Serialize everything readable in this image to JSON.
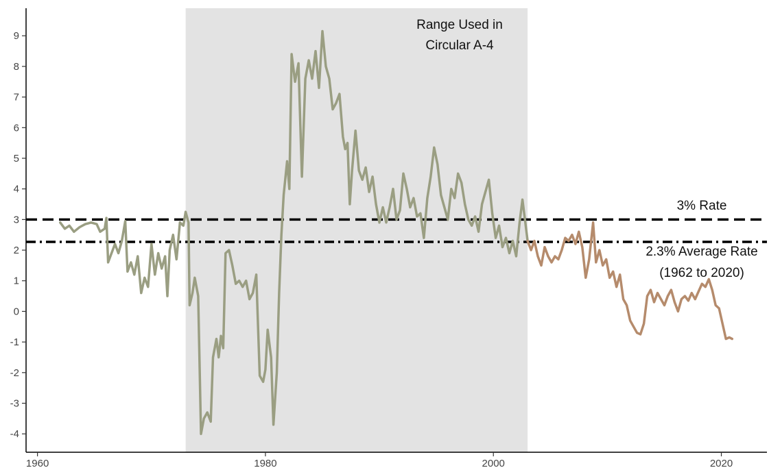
{
  "chart_data": {
    "type": "line",
    "title": "",
    "xlabel": "",
    "ylabel": "",
    "xlim": [
      1959,
      2024
    ],
    "ylim": [
      -4.6,
      9.9
    ],
    "x_ticks": [
      1960,
      1980,
      2000,
      2020
    ],
    "y_ticks": [
      -4,
      -3,
      -2,
      -1,
      0,
      1,
      2,
      3,
      4,
      5,
      6,
      7,
      8,
      9
    ],
    "shaded_region": {
      "x_start": 1973.0,
      "x_end": 2003.0,
      "color": "#e3e3e3",
      "label_lines": [
        "Range Used in",
        "Circular A-4"
      ]
    },
    "reference_lines": [
      {
        "name": "3% Rate",
        "label_lines": [
          "3% Rate"
        ],
        "y": 3.0,
        "style": "dashed",
        "color": "#000000"
      },
      {
        "name": "2.3% Average Rate",
        "label_lines": [
          "2.3% Average Rate",
          "(1962 to 2020)"
        ],
        "y": 2.27,
        "style": "dashdot",
        "color": "#000000"
      }
    ],
    "series": [
      {
        "color": "#9a9e82",
        "points": [
          [
            1962.0,
            2.9
          ],
          [
            1962.4,
            2.7
          ],
          [
            1962.8,
            2.8
          ],
          [
            1963.2,
            2.6
          ],
          [
            1963.7,
            2.75
          ],
          [
            1964.2,
            2.85
          ],
          [
            1964.7,
            2.9
          ],
          [
            1965.2,
            2.85
          ],
          [
            1965.5,
            2.6
          ],
          [
            1965.9,
            2.7
          ],
          [
            1966.05,
            3.05
          ],
          [
            1966.2,
            1.6
          ],
          [
            1966.5,
            1.9
          ],
          [
            1966.8,
            2.2
          ],
          [
            1967.1,
            1.9
          ],
          [
            1967.4,
            2.3
          ],
          [
            1967.7,
            2.95
          ],
          [
            1967.9,
            1.3
          ],
          [
            1968.2,
            1.6
          ],
          [
            1968.5,
            1.2
          ],
          [
            1968.8,
            1.8
          ],
          [
            1969.1,
            0.6
          ],
          [
            1969.4,
            1.1
          ],
          [
            1969.7,
            0.8
          ],
          [
            1970.0,
            2.2
          ],
          [
            1970.3,
            1.2
          ],
          [
            1970.6,
            1.9
          ],
          [
            1970.9,
            1.4
          ],
          [
            1971.2,
            1.8
          ],
          [
            1971.4,
            0.5
          ],
          [
            1971.6,
            2.0
          ],
          [
            1971.9,
            2.5
          ],
          [
            1972.2,
            1.7
          ],
          [
            1972.5,
            2.9
          ],
          [
            1972.8,
            2.8
          ],
          [
            1973.0,
            3.25
          ],
          [
            1973.25,
            2.9
          ],
          [
            1973.35,
            0.2
          ],
          [
            1973.6,
            0.6
          ],
          [
            1973.8,
            1.1
          ],
          [
            1974.1,
            0.5
          ],
          [
            1974.35,
            -4.0
          ],
          [
            1974.6,
            -3.5
          ],
          [
            1974.9,
            -3.3
          ],
          [
            1975.2,
            -3.6
          ],
          [
            1975.4,
            -1.5
          ],
          [
            1975.7,
            -0.9
          ],
          [
            1975.9,
            -1.5
          ],
          [
            1976.1,
            -0.8
          ],
          [
            1976.3,
            -1.2
          ],
          [
            1976.5,
            1.9
          ],
          [
            1976.8,
            2.0
          ],
          [
            1977.1,
            1.5
          ],
          [
            1977.4,
            0.9
          ],
          [
            1977.7,
            1.0
          ],
          [
            1978.0,
            0.8
          ],
          [
            1978.3,
            1.0
          ],
          [
            1978.6,
            0.4
          ],
          [
            1978.9,
            0.6
          ],
          [
            1979.2,
            1.2
          ],
          [
            1979.5,
            -2.1
          ],
          [
            1979.8,
            -2.3
          ],
          [
            1980.0,
            -1.9
          ],
          [
            1980.2,
            -0.6
          ],
          [
            1980.5,
            -1.5
          ],
          [
            1980.7,
            -3.7
          ],
          [
            1981.0,
            -2.0
          ],
          [
            1981.2,
            0.6
          ],
          [
            1981.4,
            2.5
          ],
          [
            1981.6,
            3.8
          ],
          [
            1981.9,
            4.9
          ],
          [
            1982.1,
            4.0
          ],
          [
            1982.3,
            8.4
          ],
          [
            1982.6,
            7.5
          ],
          [
            1982.9,
            8.1
          ],
          [
            1983.2,
            4.4
          ],
          [
            1983.5,
            7.6
          ],
          [
            1983.8,
            8.2
          ],
          [
            1984.1,
            7.6
          ],
          [
            1984.4,
            8.5
          ],
          [
            1984.7,
            7.3
          ],
          [
            1985.0,
            9.15
          ],
          [
            1985.3,
            8.0
          ],
          [
            1985.6,
            7.6
          ],
          [
            1985.9,
            6.6
          ],
          [
            1986.2,
            6.8
          ],
          [
            1986.5,
            7.1
          ],
          [
            1986.8,
            5.7
          ],
          [
            1987.0,
            5.3
          ],
          [
            1987.2,
            5.5
          ],
          [
            1987.4,
            3.5
          ],
          [
            1987.6,
            4.6
          ],
          [
            1987.9,
            5.9
          ],
          [
            1988.2,
            4.6
          ],
          [
            1988.5,
            4.3
          ],
          [
            1988.8,
            4.7
          ],
          [
            1989.1,
            3.9
          ],
          [
            1989.4,
            4.4
          ],
          [
            1989.7,
            3.5
          ],
          [
            1990.0,
            2.9
          ],
          [
            1990.3,
            3.4
          ],
          [
            1990.6,
            2.9
          ],
          [
            1990.9,
            3.4
          ],
          [
            1991.2,
            4.0
          ],
          [
            1991.5,
            3.0
          ],
          [
            1991.8,
            3.3
          ],
          [
            1992.1,
            4.5
          ],
          [
            1992.4,
            4.0
          ],
          [
            1992.7,
            3.4
          ],
          [
            1993.0,
            3.7
          ],
          [
            1993.3,
            3.1
          ],
          [
            1993.6,
            3.2
          ],
          [
            1993.9,
            2.4
          ],
          [
            1994.2,
            3.7
          ],
          [
            1994.5,
            4.4
          ],
          [
            1994.8,
            5.35
          ],
          [
            1995.1,
            4.8
          ],
          [
            1995.4,
            3.8
          ],
          [
            1995.7,
            3.4
          ],
          [
            1996.0,
            3.0
          ],
          [
            1996.3,
            4.0
          ],
          [
            1996.6,
            3.7
          ],
          [
            1996.9,
            4.5
          ],
          [
            1997.2,
            4.2
          ],
          [
            1997.5,
            3.5
          ],
          [
            1997.8,
            3.0
          ],
          [
            1998.1,
            2.8
          ],
          [
            1998.4,
            3.1
          ],
          [
            1998.7,
            2.6
          ],
          [
            1999.0,
            3.5
          ],
          [
            1999.3,
            3.9
          ],
          [
            1999.6,
            4.3
          ],
          [
            1999.9,
            3.2
          ],
          [
            2000.2,
            2.4
          ],
          [
            2000.5,
            2.8
          ],
          [
            2000.8,
            2.1
          ],
          [
            2001.1,
            2.4
          ],
          [
            2001.4,
            1.9
          ],
          [
            2001.7,
            2.3
          ],
          [
            2002.0,
            1.8
          ],
          [
            2002.3,
            2.9
          ],
          [
            2002.55,
            3.65
          ],
          [
            2002.8,
            2.9
          ],
          [
            2003.0,
            2.3
          ]
        ]
      },
      {
        "color": "#b58b6c",
        "points": [
          [
            2003.0,
            2.3
          ],
          [
            2003.3,
            2.0
          ],
          [
            2003.6,
            2.3
          ],
          [
            2003.9,
            1.8
          ],
          [
            2004.2,
            1.5
          ],
          [
            2004.5,
            2.1
          ],
          [
            2004.8,
            1.8
          ],
          [
            2005.1,
            1.6
          ],
          [
            2005.4,
            1.8
          ],
          [
            2005.7,
            1.7
          ],
          [
            2006.0,
            2.0
          ],
          [
            2006.3,
            2.4
          ],
          [
            2006.6,
            2.3
          ],
          [
            2006.9,
            2.5
          ],
          [
            2007.2,
            2.2
          ],
          [
            2007.5,
            2.6
          ],
          [
            2007.8,
            2.1
          ],
          [
            2008.1,
            1.1
          ],
          [
            2008.4,
            1.7
          ],
          [
            2008.75,
            2.9
          ],
          [
            2009.0,
            1.6
          ],
          [
            2009.3,
            2.0
          ],
          [
            2009.6,
            1.5
          ],
          [
            2009.9,
            1.7
          ],
          [
            2010.2,
            1.1
          ],
          [
            2010.5,
            1.3
          ],
          [
            2010.8,
            0.8
          ],
          [
            2011.1,
            1.2
          ],
          [
            2011.4,
            0.4
          ],
          [
            2011.7,
            0.2
          ],
          [
            2012.0,
            -0.3
          ],
          [
            2012.3,
            -0.5
          ],
          [
            2012.6,
            -0.7
          ],
          [
            2012.9,
            -0.75
          ],
          [
            2013.2,
            -0.4
          ],
          [
            2013.5,
            0.5
          ],
          [
            2013.8,
            0.7
          ],
          [
            2014.1,
            0.3
          ],
          [
            2014.4,
            0.6
          ],
          [
            2014.7,
            0.4
          ],
          [
            2015.0,
            0.2
          ],
          [
            2015.3,
            0.5
          ],
          [
            2015.6,
            0.7
          ],
          [
            2015.9,
            0.3
          ],
          [
            2016.2,
            0.0
          ],
          [
            2016.5,
            0.4
          ],
          [
            2016.8,
            0.5
          ],
          [
            2017.1,
            0.35
          ],
          [
            2017.4,
            0.6
          ],
          [
            2017.7,
            0.4
          ],
          [
            2018.0,
            0.65
          ],
          [
            2018.3,
            0.9
          ],
          [
            2018.6,
            0.8
          ],
          [
            2018.9,
            1.05
          ],
          [
            2019.2,
            0.7
          ],
          [
            2019.5,
            0.2
          ],
          [
            2019.8,
            0.1
          ],
          [
            2020.1,
            -0.4
          ],
          [
            2020.4,
            -0.9
          ],
          [
            2020.7,
            -0.85
          ],
          [
            2020.95,
            -0.9
          ]
        ]
      }
    ]
  }
}
